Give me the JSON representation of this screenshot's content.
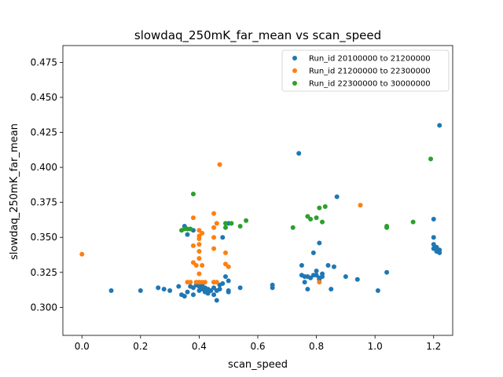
{
  "chart_data": {
    "type": "scatter",
    "title": "slowdaq_250mK_far_mean vs scan_speed",
    "xlabel": "scan_speed",
    "ylabel": "slowdaq_250mK_far_mean",
    "xlim": [
      -0.065,
      1.265
    ],
    "ylim": [
      0.28,
      0.487
    ],
    "xticks": [
      0.0,
      0.2,
      0.4,
      0.6,
      0.8,
      1.0,
      1.2
    ],
    "xtick_labels": [
      "0.0",
      "0.2",
      "0.4",
      "0.6",
      "0.8",
      "1.0",
      "1.2"
    ],
    "yticks": [
      0.3,
      0.325,
      0.35,
      0.375,
      0.4,
      0.425,
      0.45,
      0.475
    ],
    "ytick_labels": [
      "0.300",
      "0.325",
      "0.350",
      "0.375",
      "0.400",
      "0.425",
      "0.450",
      "0.475"
    ],
    "grid": false,
    "legend_position": "top-right",
    "series": [
      {
        "name": "Run_id 20100000 to 21200000",
        "color": "#1f77b4",
        "points": [
          [
            0.1,
            0.312
          ],
          [
            0.2,
            0.312
          ],
          [
            0.26,
            0.314
          ],
          [
            0.28,
            0.313
          ],
          [
            0.3,
            0.312
          ],
          [
            0.33,
            0.315
          ],
          [
            0.34,
            0.309
          ],
          [
            0.35,
            0.308
          ],
          [
            0.36,
            0.311
          ],
          [
            0.37,
            0.315
          ],
          [
            0.38,
            0.309
          ],
          [
            0.38,
            0.314
          ],
          [
            0.39,
            0.316
          ],
          [
            0.4,
            0.312
          ],
          [
            0.4,
            0.315
          ],
          [
            0.41,
            0.313
          ],
          [
            0.41,
            0.316
          ],
          [
            0.42,
            0.311
          ],
          [
            0.42,
            0.314
          ],
          [
            0.43,
            0.31
          ],
          [
            0.43,
            0.313
          ],
          [
            0.44,
            0.312
          ],
          [
            0.45,
            0.314
          ],
          [
            0.45,
            0.309
          ],
          [
            0.46,
            0.305
          ],
          [
            0.46,
            0.312
          ],
          [
            0.47,
            0.313
          ],
          [
            0.47,
            0.316
          ],
          [
            0.48,
            0.317
          ],
          [
            0.49,
            0.322
          ],
          [
            0.5,
            0.312
          ],
          [
            0.5,
            0.311
          ],
          [
            0.5,
            0.319
          ],
          [
            0.48,
            0.35
          ],
          [
            0.5,
            0.36
          ],
          [
            0.35,
            0.358
          ],
          [
            0.36,
            0.352
          ],
          [
            0.38,
            0.355
          ],
          [
            0.54,
            0.314
          ],
          [
            0.65,
            0.314
          ],
          [
            0.65,
            0.316
          ],
          [
            0.74,
            0.41
          ],
          [
            0.75,
            0.33
          ],
          [
            0.75,
            0.323
          ],
          [
            0.76,
            0.322
          ],
          [
            0.76,
            0.318
          ],
          [
            0.77,
            0.313
          ],
          [
            0.77,
            0.322
          ],
          [
            0.78,
            0.321
          ],
          [
            0.79,
            0.339
          ],
          [
            0.79,
            0.323
          ],
          [
            0.8,
            0.323
          ],
          [
            0.8,
            0.326
          ],
          [
            0.81,
            0.32
          ],
          [
            0.81,
            0.321
          ],
          [
            0.82,
            0.324
          ],
          [
            0.82,
            0.322
          ],
          [
            0.81,
            0.346
          ],
          [
            0.84,
            0.33
          ],
          [
            0.85,
            0.313
          ],
          [
            0.86,
            0.329
          ],
          [
            0.87,
            0.379
          ],
          [
            0.9,
            0.322
          ],
          [
            0.94,
            0.32
          ],
          [
            1.01,
            0.312
          ],
          [
            1.04,
            0.325
          ],
          [
            1.2,
            0.342
          ],
          [
            1.2,
            0.345
          ],
          [
            1.21,
            0.34
          ],
          [
            1.21,
            0.343
          ],
          [
            1.2,
            0.35
          ],
          [
            1.2,
            0.363
          ],
          [
            1.22,
            0.341
          ],
          [
            1.22,
            0.339
          ],
          [
            1.22,
            0.43
          ]
        ]
      },
      {
        "name": "Run_id 21200000 to 22300000",
        "color": "#ff7f0e",
        "points": [
          [
            0.0,
            0.338
          ],
          [
            0.36,
            0.318
          ],
          [
            0.37,
            0.318
          ],
          [
            0.38,
            0.332
          ],
          [
            0.38,
            0.344
          ],
          [
            0.38,
            0.364
          ],
          [
            0.39,
            0.318
          ],
          [
            0.39,
            0.33
          ],
          [
            0.4,
            0.318
          ],
          [
            0.4,
            0.324
          ],
          [
            0.4,
            0.318
          ],
          [
            0.4,
            0.335
          ],
          [
            0.4,
            0.34
          ],
          [
            0.4,
            0.345
          ],
          [
            0.4,
            0.349
          ],
          [
            0.4,
            0.351
          ],
          [
            0.4,
            0.355
          ],
          [
            0.41,
            0.318
          ],
          [
            0.41,
            0.33
          ],
          [
            0.41,
            0.353
          ],
          [
            0.42,
            0.318
          ],
          [
            0.45,
            0.318
          ],
          [
            0.45,
            0.318
          ],
          [
            0.45,
            0.342
          ],
          [
            0.45,
            0.35
          ],
          [
            0.45,
            0.357
          ],
          [
            0.45,
            0.367
          ],
          [
            0.46,
            0.36
          ],
          [
            0.46,
            0.318
          ],
          [
            0.47,
            0.402
          ],
          [
            0.49,
            0.339
          ],
          [
            0.49,
            0.331
          ],
          [
            0.5,
            0.329
          ],
          [
            0.81,
            0.318
          ],
          [
            0.95,
            0.373
          ]
        ]
      },
      {
        "name": "Run_id 22300000 to 30000000",
        "color": "#2ca02c",
        "points": [
          [
            0.34,
            0.355
          ],
          [
            0.35,
            0.356
          ],
          [
            0.36,
            0.356
          ],
          [
            0.37,
            0.356
          ],
          [
            0.38,
            0.381
          ],
          [
            0.49,
            0.357
          ],
          [
            0.49,
            0.36
          ],
          [
            0.51,
            0.36
          ],
          [
            0.54,
            0.358
          ],
          [
            0.56,
            0.362
          ],
          [
            0.72,
            0.357
          ],
          [
            0.77,
            0.365
          ],
          [
            0.78,
            0.363
          ],
          [
            0.8,
            0.364
          ],
          [
            0.81,
            0.371
          ],
          [
            0.82,
            0.361
          ],
          [
            0.83,
            0.372
          ],
          [
            1.04,
            0.357
          ],
          [
            1.04,
            0.358
          ],
          [
            1.13,
            0.361
          ],
          [
            1.19,
            0.406
          ]
        ]
      }
    ]
  }
}
